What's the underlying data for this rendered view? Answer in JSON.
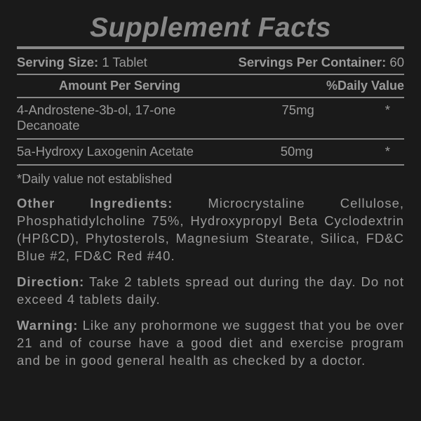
{
  "title": "Supplement Facts",
  "serving": {
    "size_label": "Serving Size:",
    "size_value": "1 Tablet",
    "per_container_label": "Servings Per Container:",
    "per_container_value": "60"
  },
  "headers": {
    "amount": "Amount Per Serving",
    "dv": "%Daily Value"
  },
  "ingredients": [
    {
      "name": "4-Androstene-3b-ol, 17-one Decanoate",
      "amount": "75mg",
      "dv": "*"
    },
    {
      "name": "5a-Hydroxy Laxogenin Acetate",
      "amount": "50mg",
      "dv": "*"
    }
  ],
  "footnote": "*Daily value not established",
  "other": {
    "label": "Other Ingredients:",
    "text": " Microcrystaline Cellulose, Phosphatidylcholine 75%, Hydroxypropyl Beta Cyclodextrin (HPßCD), Phytosterols, Magnesium Stearate, Silica, FD&C Blue #2, FD&C Red #40."
  },
  "direction": {
    "label": "Direction:",
    "text": " Take 2 tablets spread out during the day. Do not exceed 4 tablets daily."
  },
  "warning": {
    "label": "Warning:",
    "text": " Like any prohormone we suggest that you be over 21 and of course have a good diet and exercise program and be in good general health as checked by a doctor."
  },
  "colors": {
    "background": "#1a1a1a",
    "text": "#9a9a9a",
    "rule": "#888888"
  }
}
